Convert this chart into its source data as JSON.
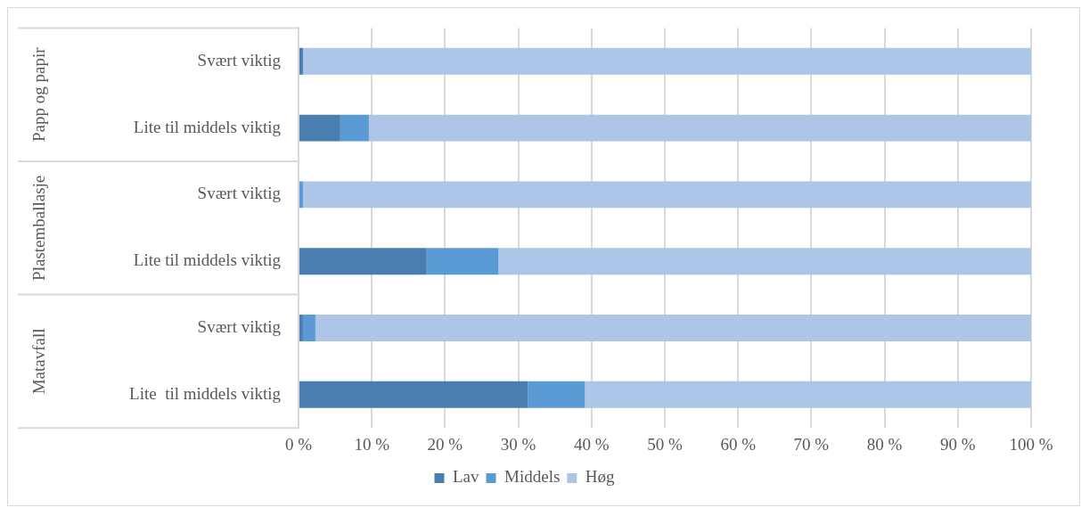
{
  "chart_data": {
    "type": "bar",
    "orientation": "horizontal",
    "stacked": true,
    "categories": [
      "Svært viktig",
      "Lite til middels viktig",
      "Svært viktig",
      "Lite til middels viktig",
      "Svært viktig",
      "Lite  til middels viktig"
    ],
    "annotations": [
      "Papp og papir",
      "Plastemballasje",
      "Matavfall"
    ],
    "series": [
      {
        "name": "Lav",
        "color": "#4a7eb0",
        "values": [
          0.6,
          5.7,
          0,
          17.4,
          0.6,
          31.3
        ]
      },
      {
        "name": "Middels",
        "color": "#5b9bd5",
        "values": [
          0,
          3.9,
          0.6,
          9.9,
          1.7,
          7.8
        ]
      },
      {
        "name": "Høg",
        "color": "#adc5e6",
        "values": [
          99.4,
          90.4,
          99.4,
          72.7,
          97.7,
          60.9
        ]
      }
    ],
    "xlim": [
      0,
      100
    ],
    "xticks": [
      {
        "value": 0,
        "label": "0 %"
      },
      {
        "value": 10,
        "label": "10 %"
      },
      {
        "value": 20,
        "label": "20 %"
      },
      {
        "value": 30,
        "label": "30 %"
      },
      {
        "value": 40,
        "label": "40 %"
      },
      {
        "value": 50,
        "label": "50 %"
      },
      {
        "value": 60,
        "label": "60 %"
      },
      {
        "value": 70,
        "label": "70 %"
      },
      {
        "value": 80,
        "label": "80 %"
      },
      {
        "value": 90,
        "label": "90 %"
      },
      {
        "value": 100,
        "label": "100 %"
      }
    ],
    "grid": "x",
    "legend": "bottom"
  }
}
